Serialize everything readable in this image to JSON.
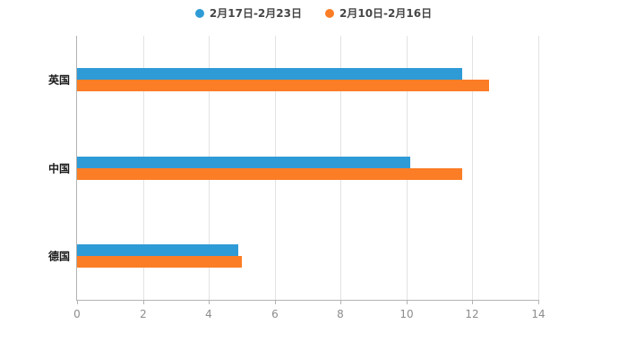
{
  "legend": {
    "items": [
      {
        "label": "2月17日-2月23日"
      },
      {
        "label": "2月10日-2月16日"
      }
    ]
  },
  "chart_data": {
    "type": "bar",
    "orientation": "horizontal",
    "title": "",
    "xlabel": "",
    "ylabel": "",
    "categories": [
      "英国",
      "中国",
      "德国"
    ],
    "series": [
      {
        "name": "2月17日-2月23日",
        "color": "#2f9bd6",
        "values": [
          11.7,
          10.1,
          4.9
        ]
      },
      {
        "name": "2月10日-2月16日",
        "color": "#fb7d25",
        "values": [
          12.5,
          11.7,
          5.0
        ]
      }
    ],
    "xlim": [
      0,
      14
    ],
    "xticks": [
      0,
      2,
      4,
      6,
      8,
      10,
      12,
      14
    ],
    "grid": true,
    "legend_position": "top",
    "background": "#ffffff"
  }
}
